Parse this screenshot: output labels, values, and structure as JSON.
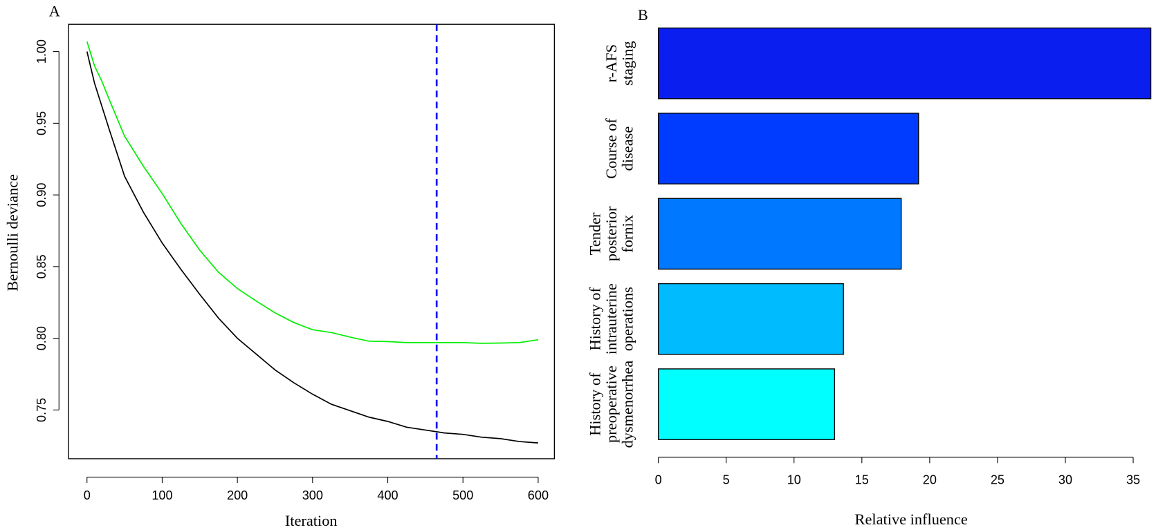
{
  "chart_data": [
    {
      "type": "line",
      "panel_label": "A",
      "xlabel": "Iteration",
      "ylabel": "Bernoulli deviance",
      "x": [
        0,
        10,
        20,
        30,
        50,
        75,
        100,
        125,
        150,
        175,
        200,
        225,
        250,
        275,
        300,
        325,
        350,
        375,
        400,
        425,
        450,
        475,
        500,
        525,
        550,
        575,
        600
      ],
      "series": [
        {
          "color": "#000000",
          "values": [
            1.0,
            0.978,
            0.9615,
            0.945,
            0.913,
            0.888,
            0.8665,
            0.848,
            0.8306,
            0.814,
            0.8,
            0.789,
            0.778,
            0.769,
            0.761,
            0.754,
            0.7495,
            0.745,
            0.742,
            0.738,
            0.736,
            0.734,
            0.733,
            0.731,
            0.73,
            0.728,
            0.727
          ]
        },
        {
          "color": "#00ee00",
          "values": [
            1.007,
            0.99,
            0.979,
            0.966,
            0.941,
            0.92,
            0.901,
            0.88,
            0.8614,
            0.846,
            0.8347,
            0.826,
            0.8178,
            0.811,
            0.806,
            0.804,
            0.8008,
            0.798,
            0.7977,
            0.797,
            0.797,
            0.797,
            0.797,
            0.7965,
            0.7967,
            0.797,
            0.799
          ]
        }
      ],
      "vline": {
        "value": 465,
        "color": "#0000ff",
        "dashed": true
      },
      "xlim": [
        -24.5,
        621.6
      ],
      "ylim": [
        0.716,
        1.019
      ],
      "xticks": [
        0,
        100,
        200,
        300,
        400,
        500,
        600
      ],
      "yticks": [
        {
          "value": 0.75,
          "label": "0.75"
        },
        {
          "value": 0.8,
          "label": "0.80"
        },
        {
          "value": 0.85,
          "label": "0.85"
        },
        {
          "value": 0.9,
          "label": "0.90"
        },
        {
          "value": 0.95,
          "label": "0.95"
        },
        {
          "value": 1.0,
          "label": "1.00"
        }
      ]
    },
    {
      "type": "bar",
      "orientation": "horizontal",
      "panel_label": "B",
      "xlabel": "Relative influence",
      "categories": [
        [
          "r-AFS",
          "staging"
        ],
        [
          "Course of",
          "disease"
        ],
        [
          "Tender",
          "posterior",
          "fornix"
        ],
        [
          "History of",
          "intrauterine",
          "operations"
        ],
        [
          "History of",
          "preoperative",
          "dysmenorrhea"
        ]
      ],
      "values": [
        36.3,
        19.18,
        17.9,
        13.64,
        12.99
      ],
      "colors": [
        "#0a1ef0",
        "#003cff",
        "#0078ff",
        "#00bcff",
        "#00ffff"
      ],
      "xlim": [
        0,
        36.3
      ],
      "xticks": [
        0,
        5,
        10,
        15,
        20,
        25,
        30,
        35
      ]
    }
  ]
}
